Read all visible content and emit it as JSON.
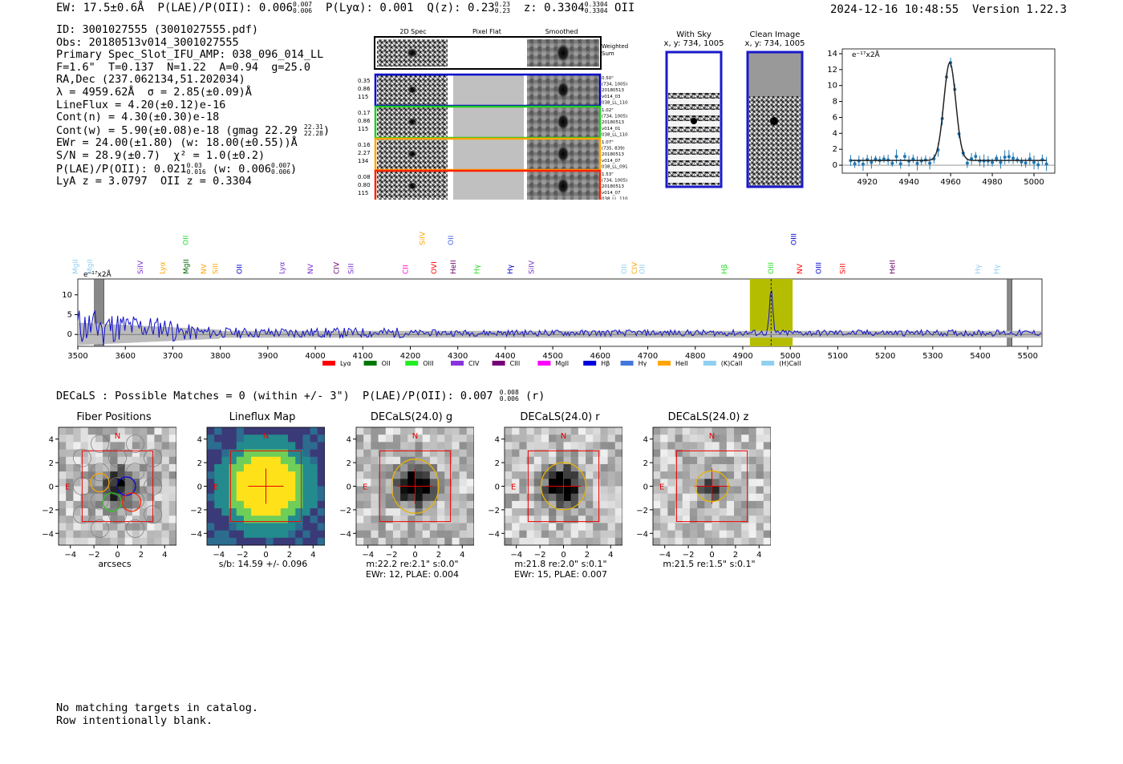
{
  "header": {
    "ew": "EW: 17.5±0.6Å",
    "plae_label": "P(LAE)/P(OII): 0.006",
    "plae_sup": "0.007",
    "plae_sub": "0.006",
    "plya": "P(Lyα): 0.001",
    "qz_label": "Q(z): 0.23",
    "qz_sup": "0.23",
    "qz_sub": "0.23",
    "z_label": "z: 0.3304",
    "z_sup": "0.3304",
    "z_sub": "0.3304",
    "line_id": "OII",
    "timestamp": "2024-12-16 10:48:55  Version 1.22.3"
  },
  "info": {
    "id": "ID: 3001027555 (3001027555.pdf)",
    "obs": "Obs: 20180513v014_3001027555",
    "primary": "Primary Spec_Slot_IFU_AMP: 038_096_014_LL",
    "fiber": "F=1.6\"  T=0.137  N=1.22  A=0.94  g=25.0",
    "radec": "RA,Dec (237.062134,51.202034)",
    "lambda": "λ = 4959.62Å  σ = 2.85(±0.09)Å",
    "lineflux": "LineFlux = 4.20(±0.12)e-16",
    "contn": "Cont(n) = 4.30(±0.30)e-18",
    "contw": "Cont(w) = 5.90(±0.08)e-18 (gmag 22.29",
    "contw_sup": "22.31",
    "contw_sub": "22.28",
    "ewr": "EWr = 24.00(±1.80) (w: 18.00(±0.55))Å",
    "sn": "S/N = 28.9(±0.7)  χ² = 1.0(±0.2)",
    "plae": "P(LAE)/P(OII): 0.021",
    "plae_sup": "0.03",
    "plae_sub": "0.016",
    "plae_w": "(w: 0.006",
    "plae_w_sup": "0.007",
    "plae_w_sub": "0.006",
    "lya": "LyA z = 3.0797  OII z = 0.3304"
  },
  "fiber_panels": {
    "col_headers": [
      "2D Spec",
      "Pixel Flat",
      "Smoothed"
    ],
    "weighted_label": "Weighted\nSum",
    "rows": [
      {
        "vals": [
          "0.35",
          "0.86",
          "115"
        ],
        "meta": [
          "0.50\"",
          "(734, 1005)",
          "20180513",
          "v014_03",
          "038_LL_110"
        ],
        "color": "#0000cc"
      },
      {
        "vals": [
          "0.17",
          "0.86",
          "115"
        ],
        "meta": [
          "1.02\"",
          "(734, 1005)",
          "20180513",
          "v014_01",
          "038_LL_110"
        ],
        "color": "#22cc22"
      },
      {
        "vals": [
          "0.16",
          "2.27",
          "134"
        ],
        "meta": [
          "1.07\"",
          "(735, 839)",
          "20180513",
          "v014_07",
          "038_LL_091"
        ],
        "color": "#ffa500"
      },
      {
        "vals": [
          "0.08",
          "0.80",
          "115"
        ],
        "meta": [
          "1.53\"",
          "(734, 1005)",
          "20180513",
          "v014_07",
          "038_LL_110"
        ],
        "color": "#ff2200"
      }
    ]
  },
  "ccd": {
    "with_sky_title": "With Sky",
    "with_sky_xy": "x, y: 734, 1005",
    "clean_title": "Clean Image",
    "clean_xy": "x, y: 734, 1005"
  },
  "fit_plot": {
    "ylabel": "e⁻¹⁷x2Å",
    "xticks": [
      "4920",
      "4940",
      "4960",
      "4980",
      "5000"
    ],
    "yticks": [
      "0",
      "2",
      "4",
      "6",
      "8",
      "10",
      "12",
      "14"
    ]
  },
  "chart_data": {
    "type": "line",
    "title": "",
    "ylabel": "e⁻¹⁷x2Å",
    "xlim": [
      3500,
      5530
    ],
    "ylim": [
      -3,
      14
    ],
    "xticks": [
      3500,
      3600,
      3700,
      3800,
      3900,
      4000,
      4100,
      4200,
      4300,
      4400,
      4500,
      4600,
      4700,
      4800,
      4900,
      5000,
      5100,
      5200,
      5300,
      5400,
      5500
    ],
    "yticks": [
      0,
      5,
      10
    ],
    "highlight": {
      "x0": 4915,
      "x1": 5005,
      "color": "#b5bd00"
    },
    "line_center": 4959.6,
    "peak": 11,
    "masks": [
      [
        3535,
        3555
      ],
      [
        5457,
        5467
      ]
    ],
    "emission_lines": [
      {
        "name": "MgII",
        "x": 3495,
        "color": "#8fd0f0",
        "row": 1
      },
      {
        "name": "MgII",
        "x": 3525,
        "color": "#8fd0f0",
        "row": 1
      },
      {
        "name": "SiIV",
        "x": 3632,
        "color": "#7733cc",
        "row": 1
      },
      {
        "name": "Lyα",
        "x": 3678,
        "color": "#ffa500",
        "row": 1
      },
      {
        "name": "OII",
        "x": 3727,
        "color": "#22dd22",
        "row": 0
      },
      {
        "name": "MgII",
        "x": 3728,
        "color": "#006600",
        "row": 1
      },
      {
        "name": "NV",
        "x": 3765,
        "color": "#ffa500",
        "row": 1
      },
      {
        "name": "SiII",
        "x": 3790,
        "color": "#ffa500",
        "row": 1
      },
      {
        "name": "OII",
        "x": 3840,
        "color": "#0000cc",
        "row": 1
      },
      {
        "name": "Lyα",
        "x": 3930,
        "color": "#7733cc",
        "row": 1
      },
      {
        "name": "NV",
        "x": 3990,
        "color": "#7733cc",
        "row": 1
      },
      {
        "name": "CIV",
        "x": 4045,
        "color": "#660066",
        "row": 1
      },
      {
        "name": "SiII",
        "x": 4075,
        "color": "#7733cc",
        "row": 1
      },
      {
        "name": "CII",
        "x": 4190,
        "color": "#ff00cc",
        "row": 1
      },
      {
        "name": "SiIV",
        "x": 4225,
        "color": "#ffa500",
        "row": 0
      },
      {
        "name": "OVI",
        "x": 4250,
        "color": "#ff0000",
        "row": 1
      },
      {
        "name": "OII",
        "x": 4285,
        "color": "#4466dd",
        "row": 0
      },
      {
        "name": "HeII",
        "x": 4290,
        "color": "#660066",
        "row": 1
      },
      {
        "name": "Hγ",
        "x": 4340,
        "color": "#22dd22",
        "row": 1
      },
      {
        "name": "Hγ",
        "x": 4410,
        "color": "#0000cc",
        "row": 1
      },
      {
        "name": "SiIV",
        "x": 4455,
        "color": "#7733cc",
        "row": 1
      },
      {
        "name": "OII",
        "x": 4650,
        "color": "#8fd0f0",
        "row": 1
      },
      {
        "name": "CIV",
        "x": 4672,
        "color": "#ffa500",
        "row": 1
      },
      {
        "name": "OII",
        "x": 4688,
        "color": "#8fd0f0",
        "row": 1
      },
      {
        "name": "Hβ",
        "x": 4861,
        "color": "#22dd22",
        "row": 1
      },
      {
        "name": "OIII",
        "x": 4959,
        "color": "#22dd22",
        "row": 1
      },
      {
        "name": "OIII",
        "x": 5007,
        "color": "#0000cc",
        "row": 0
      },
      {
        "name": "NV",
        "x": 5020,
        "color": "#ff0000",
        "row": 1
      },
      {
        "name": "OIII",
        "x": 5060,
        "color": "#0000cc",
        "row": 1
      },
      {
        "name": "SiII",
        "x": 5110,
        "color": "#ff0000",
        "row": 1
      },
      {
        "name": "HeII",
        "x": 5215,
        "color": "#660066",
        "row": 1
      },
      {
        "name": "Hγ",
        "x": 5395,
        "color": "#8fd0f0",
        "row": 1
      },
      {
        "name": "Hγ",
        "x": 5435,
        "color": "#8fd0f0",
        "row": 1
      }
    ],
    "legend": [
      {
        "label": "Lyα",
        "color": "#ff0000"
      },
      {
        "label": "OII",
        "color": "#007700"
      },
      {
        "label": "OIII",
        "color": "#22ee22"
      },
      {
        "label": "CIV",
        "color": "#8833dd"
      },
      {
        "label": "CIII",
        "color": "#770077"
      },
      {
        "label": "MgII",
        "color": "#ff00ff"
      },
      {
        "label": "Hβ",
        "color": "#0000dd"
      },
      {
        "label": "Hγ",
        "color": "#4477dd"
      },
      {
        "label": "HeII",
        "color": "#ffa500"
      },
      {
        "label": "(K)CaII",
        "color": "#8fd0f0"
      },
      {
        "label": "(H)CaII",
        "color": "#8fd0f0"
      }
    ]
  },
  "decals": {
    "summary": "DECaLS : Possible Matches = 0 (within +/- 3\")  P(LAE)/P(OII): 0.007",
    "summary_sup": "0.008",
    "summary_sub": "0.006",
    "summary_band": "(r)",
    "north": "N",
    "east": "E",
    "xticks": [
      "−4",
      "−2",
      "0",
      "2",
      "4"
    ],
    "yticks": [
      "4",
      "2",
      "0",
      "−2",
      "−4"
    ],
    "panels": [
      {
        "title": "Fiber Positions",
        "caption1": "arcsecs",
        "caption2": ""
      },
      {
        "title": "Lineflux Map",
        "caption1": "s/b: 14.59 +/- 0.096",
        "caption2": ""
      },
      {
        "title": "DECaLS(24.0) g",
        "caption1": "m:22.2  re:2.1\"  s:0.0\"",
        "caption2": "EWr: 12, PLAE: 0.004"
      },
      {
        "title": "DECaLS(24.0) r",
        "caption1": "m:21.8  re:2.0\"  s:0.1\"",
        "caption2": "EWr: 15, PLAE: 0.007"
      },
      {
        "title": "DECaLS(24.0) z",
        "caption1": "m:21.5  re:1.5\"  s:0.1\"",
        "caption2": ""
      }
    ]
  },
  "catalog": {
    "line1": "No matching targets in catalog.",
    "line2": "Row intentionally blank."
  }
}
